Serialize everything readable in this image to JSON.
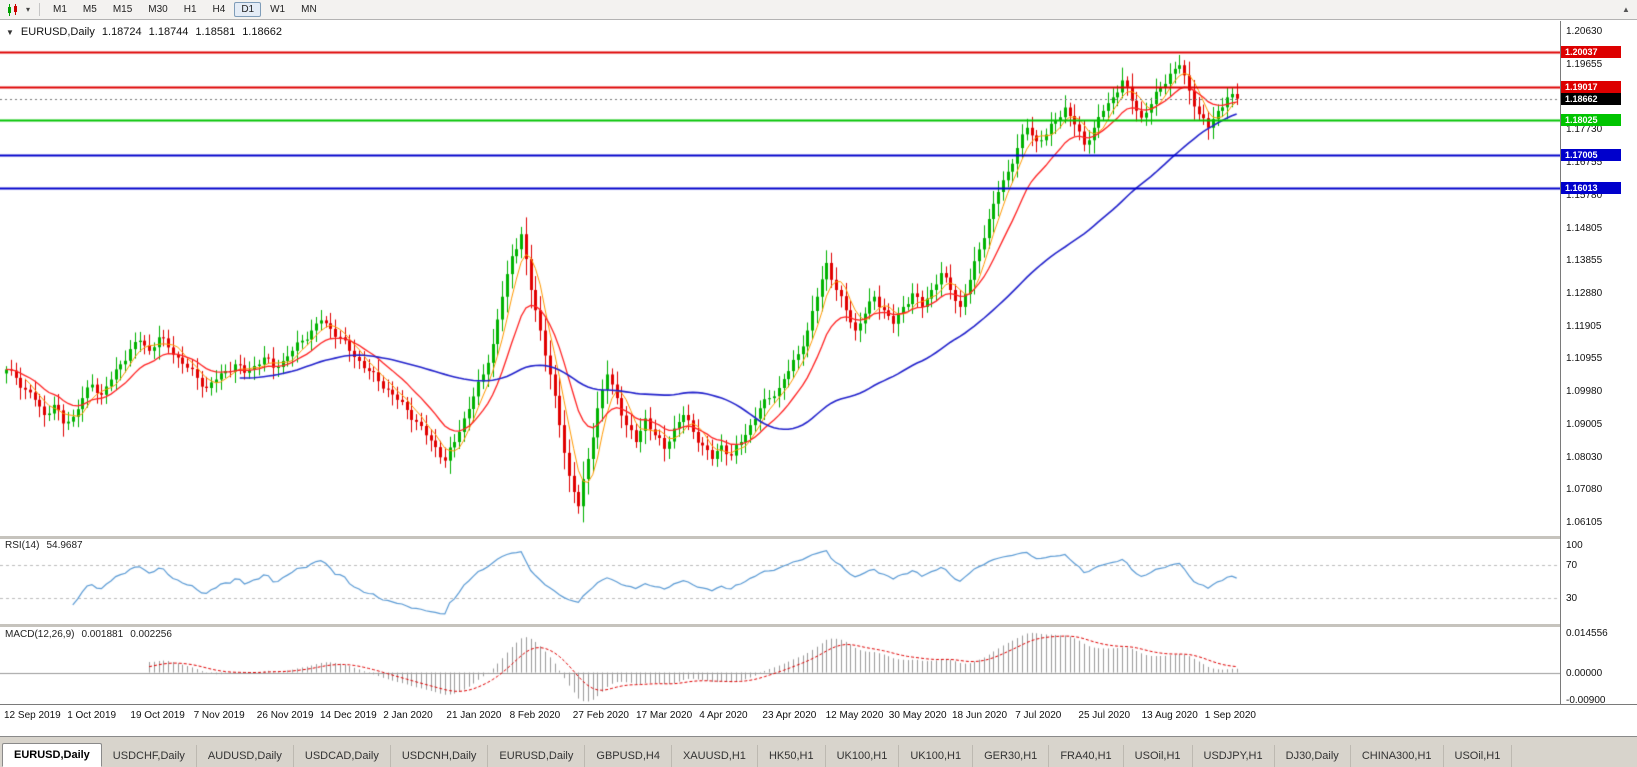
{
  "toolbar": {
    "timeframes": [
      "M1",
      "M5",
      "M15",
      "M30",
      "H1",
      "H4",
      "D1",
      "W1",
      "MN"
    ],
    "active_timeframe": "D1"
  },
  "chart": {
    "symbol_label": "EURUSD,Daily",
    "open": "1.18724",
    "high": "1.18744",
    "low": "1.18581",
    "close": "1.18662"
  },
  "price_axis": {
    "ticks": [
      1.2063,
      1.19655,
      1.1773,
      1.16755,
      1.1578,
      1.14805,
      1.13855,
      1.1288,
      1.11905,
      1.10955,
      1.0998,
      1.09005,
      1.0803,
      1.0708,
      1.06105
    ]
  },
  "lines": [
    {
      "label": "1.20037",
      "price": 1.20037,
      "color": "#dd0000",
      "kind": "resistance-upper"
    },
    {
      "label": "1.19017",
      "price": 1.19017,
      "color": "#dd0000",
      "kind": "resistance-lower"
    },
    {
      "label": "1.18662",
      "price": 1.18662,
      "color": "#000000",
      "kind": "current-price"
    },
    {
      "label": "1.18025",
      "price": 1.18025,
      "color": "#00c400",
      "kind": "support-green"
    },
    {
      "label": "1.17005",
      "price": 1.17005,
      "color": "#0000cc",
      "kind": "support-blue-upper"
    },
    {
      "label": "1.16013",
      "price": 1.16013,
      "color": "#0000cc",
      "kind": "support-blue-lower"
    }
  ],
  "time_axis": {
    "labels": [
      "12 Sep 2019",
      "1 Oct 2019",
      "19 Oct 2019",
      "7 Nov 2019",
      "26 Nov 2019",
      "14 Dec 2019",
      "2 Jan 2020",
      "21 Jan 2020",
      "8 Feb 2020",
      "27 Feb 2020",
      "17 Mar 2020",
      "4 Apr 2020",
      "23 Apr 2020",
      "12 May 2020",
      "30 May 2020",
      "18 Jun 2020",
      "7 Jul 2020",
      "25 Jul 2020",
      "13 Aug 2020",
      "1 Sep 2020"
    ]
  },
  "rsi": {
    "label": "RSI(14)",
    "value": "54.9687",
    "axis": [
      {
        "text": "100",
        "v": 100
      },
      {
        "text": "70",
        "v": 70
      },
      {
        "text": "30",
        "v": 30
      }
    ],
    "levels": [
      70,
      30
    ]
  },
  "macd": {
    "label": "MACD(12,26,9)",
    "value1": "0.001881",
    "value2": "0.002256",
    "axis": [
      {
        "text": "0.014556",
        "v": 0.014556
      },
      {
        "text": "0.00000",
        "v": 0
      },
      {
        "text": "-0.00900",
        "v": -0.009
      }
    ]
  },
  "tabs": {
    "active_index": 0,
    "items": [
      "EURUSD,Daily",
      "USDCHF,Daily",
      "AUDUSD,Daily",
      "USDCAD,Daily",
      "USDCNH,Daily",
      "EURUSD,Daily",
      "GBPUSD,H4",
      "XAUUSD,H1",
      "HK50,H1",
      "UK100,H1",
      "UK100,H1",
      "GER30,H1",
      "FRA40,H1",
      "USOil,H1",
      "USDJPY,H1",
      "DJ30,Daily",
      "CHINA300,H1",
      "USOil,H1"
    ]
  },
  "chart_data": {
    "type": "candlestick",
    "symbol": "EURUSD",
    "timeframe": "Daily",
    "title": "EURUSD,Daily",
    "ohlc_current": {
      "open": 1.18724,
      "high": 1.18744,
      "low": 1.18581,
      "close": 1.18662
    },
    "x_range": [
      "12 Sep 2019",
      "11 Sep 2020"
    ],
    "y_range_labels": [
      1.06105,
      1.2063
    ],
    "ylim": [
      1.0572,
      1.2096
    ],
    "horizontal_levels": [
      1.20037,
      1.19017,
      1.18025,
      1.17005,
      1.16013
    ],
    "up_color": "#00b200",
    "down_color": "#e00000",
    "overlays": [
      {
        "name": "fast-ma",
        "color": "#ff9900"
      },
      {
        "name": "medium-ma",
        "color": "#ff2222"
      },
      {
        "name": "slow-ma",
        "color": "#2222cc"
      }
    ],
    "indicators": [
      {
        "name": "RSI",
        "period": 14,
        "current": 54.9687
      },
      {
        "name": "MACD",
        "params": [
          12,
          26,
          9
        ],
        "current": [
          0.001881,
          0.002256
        ],
        "axis_max": 0.014556,
        "axis_min": -0.009
      }
    ],
    "close_path": [
      1.1065,
      1.104,
      1.1005,
      1.0975,
      1.093,
      1.096,
      1.0905,
      1.0925,
      1.098,
      1.102,
      1.099,
      1.1035,
      1.108,
      1.1125,
      1.115,
      1.112,
      1.116,
      1.113,
      1.11,
      1.107,
      1.104,
      1.101,
      1.1035,
      1.106,
      1.108,
      1.1055,
      1.1075,
      1.11,
      1.107,
      1.109,
      1.112,
      1.115,
      1.118,
      1.121,
      1.1185,
      1.116,
      1.112,
      1.109,
      1.106,
      1.103,
      1.1005,
      1.0975,
      1.0945,
      1.091,
      1.087,
      1.0835,
      1.0795,
      1.085,
      1.092,
      1.0985,
      1.105,
      1.114,
      1.128,
      1.14,
      1.1465,
      1.13,
      1.118,
      1.105,
      1.09,
      1.075,
      1.066,
      1.08,
      1.095,
      1.105,
      1.098,
      1.09,
      1.085,
      1.092,
      1.087,
      1.083,
      1.089,
      1.093,
      1.088,
      1.084,
      1.08,
      1.084,
      1.081,
      1.085,
      1.09,
      1.095,
      1.098,
      1.101,
      1.106,
      1.111,
      1.118,
      1.128,
      1.138,
      1.13,
      1.124,
      1.118,
      1.123,
      1.128,
      1.124,
      1.12,
      1.125,
      1.129,
      1.125,
      1.13,
      1.135,
      1.13,
      1.125,
      1.133,
      1.142,
      1.151,
      1.159,
      1.165,
      1.172,
      1.178,
      1.174,
      1.176,
      1.18,
      1.184,
      1.179,
      1.173,
      1.178,
      1.183,
      1.187,
      1.192,
      1.186,
      1.181,
      1.185,
      1.19,
      1.194,
      1.1965,
      1.189,
      1.182,
      1.178,
      1.183,
      1.187,
      1.18662
    ]
  }
}
